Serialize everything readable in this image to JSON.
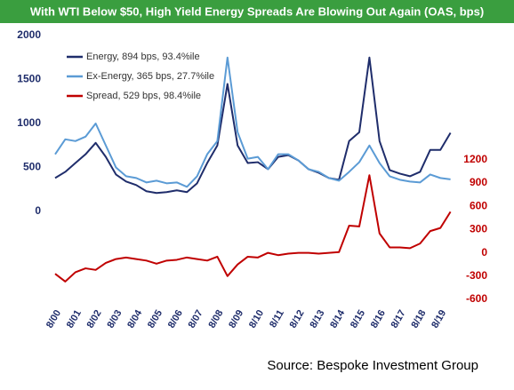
{
  "chart_data": {
    "type": "line",
    "title": "With WTI Below $50, High Yield Energy Spreads Are Blowing Out Again (OAS, bps)",
    "source": "Source: Bespoke Investment Group",
    "categories": [
      "8/00",
      null,
      "8/01",
      null,
      "8/02",
      null,
      "8/03",
      null,
      "8/04",
      null,
      "8/05",
      null,
      "8/06",
      null,
      "8/07",
      null,
      "8/08",
      null,
      "8/09",
      null,
      "8/10",
      null,
      "8/11",
      null,
      "8/12",
      null,
      "8/13",
      null,
      "8/14",
      null,
      "8/15",
      null,
      "8/16",
      null,
      "8/17",
      null,
      "8/18",
      null,
      "8/19",
      null
    ],
    "series": [
      {
        "name": "Energy, 894 bps, 93.4%ile",
        "color": "#1f2d6b",
        "values": [
          380,
          450,
          550,
          650,
          780,
          620,
          420,
          340,
          300,
          230,
          210,
          220,
          240,
          220,
          320,
          550,
          750,
          1450,
          750,
          550,
          560,
          480,
          620,
          640,
          580,
          480,
          440,
          380,
          360,
          800,
          900,
          1750,
          800,
          470,
          430,
          400,
          450,
          700,
          700,
          894
        ]
      },
      {
        "name": "Ex-Energy, 365 bps, 27.7%ile",
        "color": "#5b9bd5",
        "values": [
          650,
          820,
          800,
          850,
          1000,
          750,
          500,
          400,
          380,
          330,
          350,
          320,
          330,
          280,
          400,
          650,
          800,
          1750,
          900,
          600,
          620,
          480,
          650,
          650,
          580,
          480,
          450,
          380,
          350,
          450,
          560,
          750,
          550,
          400,
          360,
          340,
          330,
          420,
          380,
          365
        ]
      },
      {
        "name": "Spread, 529 bps, 98.4%ile",
        "color": "#c00000",
        "axis": "y2",
        "values": [
          -270,
          -370,
          -250,
          -200,
          -220,
          -130,
          -80,
          -60,
          -80,
          -100,
          -140,
          -100,
          -90,
          -60,
          -80,
          -100,
          -50,
          -300,
          -150,
          -50,
          -60,
          0,
          -30,
          -10,
          0,
          0,
          -10,
          0,
          10,
          350,
          340,
          1000,
          250,
          70,
          70,
          60,
          120,
          280,
          320,
          529
        ]
      }
    ],
    "ylim": [
      -1000,
      2000
    ],
    "yticks": [
      0,
      500,
      1000,
      1500,
      2000
    ],
    "y2lim": [
      -600,
      2800
    ],
    "y2ticks": [
      -600,
      -300,
      0,
      300,
      600,
      900,
      1200
    ],
    "legend": "upper left",
    "grid": false
  }
}
